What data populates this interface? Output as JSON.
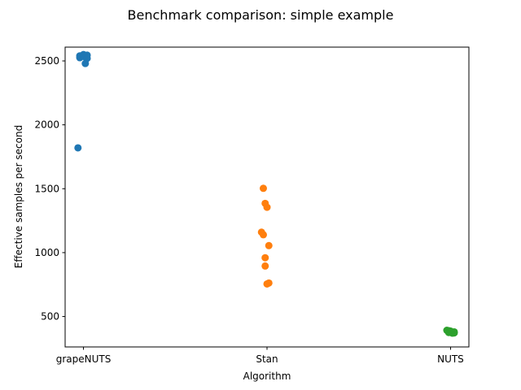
{
  "chart_data": {
    "type": "scatter",
    "title": "Benchmark comparison: simple example",
    "xlabel": "Algorithm",
    "ylabel": "Effective samples per second",
    "categories": [
      "grapeNUTS",
      "Stan",
      "NUTS"
    ],
    "yticks": [
      500,
      1000,
      1500,
      2000,
      2500
    ],
    "ylim": [
      262,
      2608
    ],
    "grid": false,
    "legend": "none",
    "series": [
      {
        "category": "grapeNUTS",
        "color": "#1f77b4",
        "points": [
          {
            "x": 0.0,
            "y": 2550
          },
          {
            "x": -0.02,
            "y": 2540
          },
          {
            "x": 0.02,
            "y": 2545
          },
          {
            "x": -0.01,
            "y": 2535
          },
          {
            "x": 0.01,
            "y": 2530
          },
          {
            "x": -0.02,
            "y": 2525
          },
          {
            "x": 0.0,
            "y": 2538
          },
          {
            "x": 0.02,
            "y": 2520
          },
          {
            "x": 0.01,
            "y": 2480
          },
          {
            "x": -0.03,
            "y": 1820
          }
        ]
      },
      {
        "category": "Stan",
        "color": "#ff7f0e",
        "points": [
          {
            "x": -0.02,
            "y": 1503
          },
          {
            "x": -0.01,
            "y": 1385
          },
          {
            "x": 0.0,
            "y": 1355
          },
          {
            "x": -0.03,
            "y": 1160
          },
          {
            "x": -0.02,
            "y": 1140
          },
          {
            "x": 0.01,
            "y": 1055
          },
          {
            "x": -0.01,
            "y": 960
          },
          {
            "x": -0.01,
            "y": 895
          },
          {
            "x": 0.01,
            "y": 762
          },
          {
            "x": 0.0,
            "y": 755
          }
        ]
      },
      {
        "category": "NUTS",
        "color": "#2ca02c",
        "points": [
          {
            "x": -0.02,
            "y": 392
          },
          {
            "x": 0.0,
            "y": 386
          },
          {
            "x": 0.02,
            "y": 380
          },
          {
            "x": -0.01,
            "y": 375
          },
          {
            "x": 0.01,
            "y": 370
          },
          {
            "x": 0.0,
            "y": 384
          },
          {
            "x": 0.02,
            "y": 372
          },
          {
            "x": -0.01,
            "y": 389
          }
        ]
      }
    ]
  }
}
